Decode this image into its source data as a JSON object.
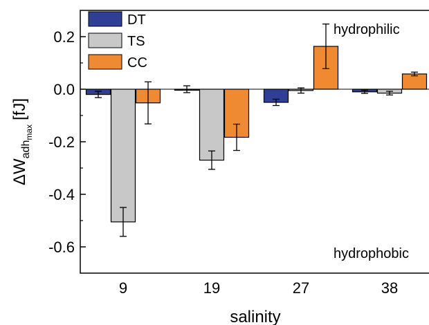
{
  "chart_data": {
    "type": "bar",
    "categories": [
      "9",
      "19",
      "27",
      "38"
    ],
    "series": [
      {
        "name": "DT",
        "color": "#2e3f95",
        "values": [
          -0.02,
          0.0,
          -0.05,
          -0.01
        ],
        "errors": [
          0.012,
          0.013,
          0.012,
          0.006
        ]
      },
      {
        "name": "TS",
        "color": "#c8c8c8",
        "values": [
          -0.505,
          -0.27,
          -0.005,
          -0.015
        ],
        "errors": [
          0.055,
          0.035,
          0.01,
          0.007
        ]
      },
      {
        "name": "CC",
        "color": "#ef8a32",
        "values": [
          -0.052,
          -0.183,
          0.163,
          0.058
        ],
        "errors": [
          0.08,
          0.05,
          0.085,
          0.007
        ]
      }
    ],
    "xlabel": "salinity",
    "ylabel_main": "ΔW",
    "ylabel_sub": "adh",
    "ylabel_subsub": "max",
    "ylabel_unit": "[fJ]",
    "ylim": [
      -0.7,
      0.3
    ],
    "yticks": [
      "0.2",
      "0.0",
      "-0.2",
      "-0.4",
      "-0.6"
    ],
    "ytick_values": [
      0.2,
      0.0,
      -0.2,
      -0.4,
      -0.6
    ],
    "legend_position": "top-left",
    "annotations": {
      "top_right": "hydrophilic",
      "bottom_right": "hydrophobic"
    }
  }
}
